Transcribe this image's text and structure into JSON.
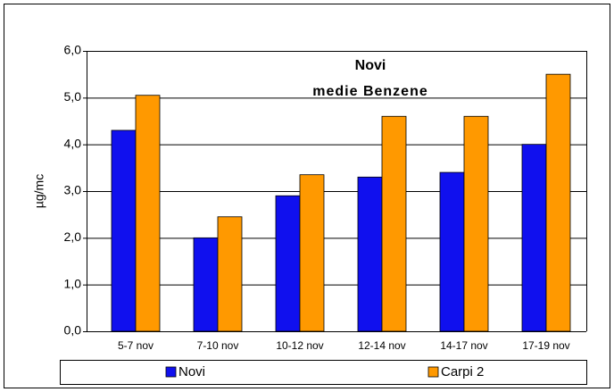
{
  "chart_data": {
    "type": "bar",
    "title": "Novi",
    "subtitle": "medie Benzene",
    "y_label": "µg/mc",
    "categories": [
      "5-7 nov",
      "7-10 nov",
      "10-12 nov",
      "12-14 nov",
      "14-17 nov",
      "17-19 nov"
    ],
    "series": [
      {
        "name": "Novi",
        "color": "#1010ee",
        "values": [
          4.3,
          2.0,
          2.9,
          3.3,
          3.4,
          4.0
        ]
      },
      {
        "name": "Carpi 2",
        "color": "#ff9900",
        "values": [
          5.05,
          2.45,
          3.35,
          4.6,
          4.6,
          5.5
        ]
      }
    ],
    "ylim": [
      0,
      6
    ],
    "yticks": [
      {
        "value": 0,
        "label": "0,0"
      },
      {
        "value": 1,
        "label": "1,0"
      },
      {
        "value": 2,
        "label": "2,0"
      },
      {
        "value": 3,
        "label": "3,0"
      },
      {
        "value": 4,
        "label": "4,0"
      },
      {
        "value": 5,
        "label": "5,0"
      },
      {
        "value": 6,
        "label": "6,0"
      }
    ],
    "grid": true,
    "legend": "bottom"
  }
}
